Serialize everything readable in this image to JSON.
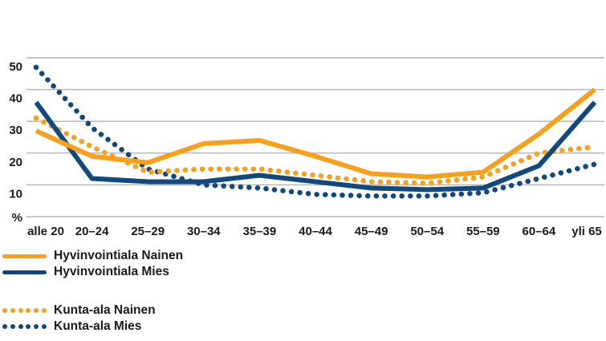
{
  "chart_data": {
    "type": "line",
    "title": "",
    "unit_label": "%",
    "categories": [
      "alle 20",
      "20–24",
      "25–29",
      "30–34",
      "35–39",
      "40–44",
      "45–49",
      "50–54",
      "55–59",
      "60–64",
      "yli 65"
    ],
    "yticks": [
      10,
      20,
      30,
      40,
      50
    ],
    "ylim": [
      0,
      50
    ],
    "grid": true,
    "legend_position": "bottom-left",
    "series": [
      {
        "name": "Hyvinvointiala Nainen",
        "style": "solid",
        "color": "#F8A01A",
        "values": [
          27,
          19,
          17,
          23,
          24,
          19,
          13.5,
          12.5,
          14,
          26,
          40
        ]
      },
      {
        "name": "Hyvinvointiala Mies",
        "style": "solid",
        "color": "#11497E",
        "values": [
          36,
          12,
          11,
          11,
          13,
          11,
          9,
          8.5,
          9,
          16,
          36
        ]
      },
      {
        "name": "Kunta-ala Nainen",
        "style": "dotted",
        "color": "#F8A01A",
        "values": [
          31,
          22,
          14,
          15,
          15,
          13,
          11,
          10.5,
          12.5,
          20,
          22
        ]
      },
      {
        "name": "Kunta-ala Mies",
        "style": "dotted",
        "color": "#11497E",
        "values": [
          47,
          28,
          15,
          10,
          9,
          7,
          6.5,
          6.5,
          7.5,
          12,
          16.5
        ]
      }
    ],
    "colors": {
      "orange": "#F8A01A",
      "blue": "#11497E",
      "grid": "#B3B3B3",
      "text": "#1A1A1A"
    }
  }
}
